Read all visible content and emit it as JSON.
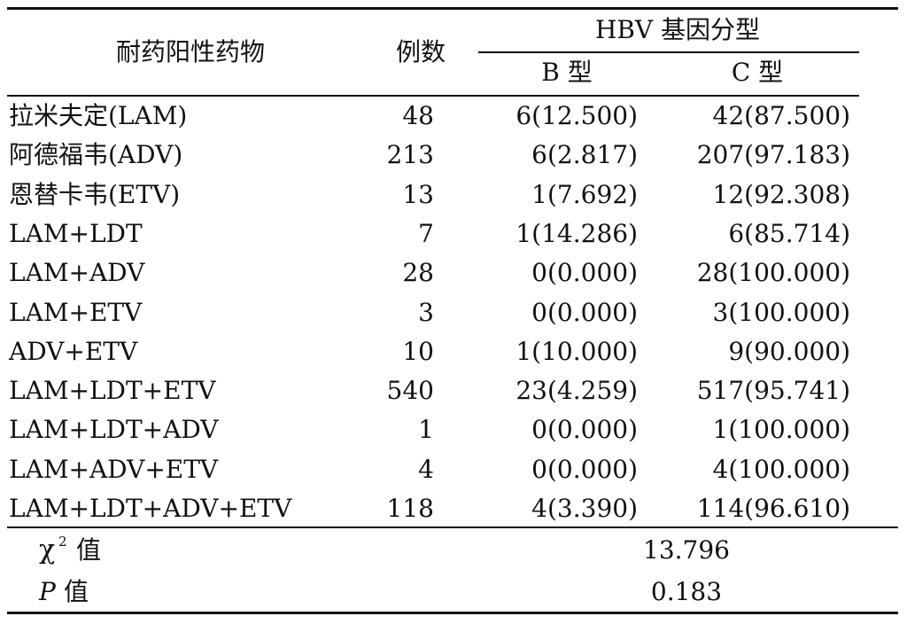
{
  "table": {
    "header": {
      "drug": "耐药阳性药物",
      "count": "例数",
      "genotype_group": "HBV 基因分型",
      "genotype_b": "B 型",
      "genotype_c": "C 型"
    },
    "rows": [
      {
        "drug": "拉米夫定(LAM)",
        "count": "48",
        "b": "6(12.500)",
        "c": "42(87.500)"
      },
      {
        "drug": "阿德福韦(ADV)",
        "count": "213",
        "b": "6(2.817)",
        "c": "207(97.183)"
      },
      {
        "drug": "恩替卡韦(ETV)",
        "count": "13",
        "b": "1(7.692)",
        "c": "12(92.308)"
      },
      {
        "drug": "LAM+LDT",
        "count": "7",
        "b": "1(14.286)",
        "c": "6(85.714)"
      },
      {
        "drug": "LAM+ADV",
        "count": "28",
        "b": "0(0.000)",
        "c": "28(100.000)"
      },
      {
        "drug": "LAM+ETV",
        "count": "3",
        "b": "0(0.000)",
        "c": "3(100.000)"
      },
      {
        "drug": "ADV+ETV",
        "count": "10",
        "b": "1(10.000)",
        "c": "9(90.000)"
      },
      {
        "drug": "LAM+LDT+ETV",
        "count": "540",
        "b": "23(4.259)",
        "c": "517(95.741)"
      },
      {
        "drug": "LAM+LDT+ADV",
        "count": "1",
        "b": "0(0.000)",
        "c": "1(100.000)"
      },
      {
        "drug": "LAM+ADV+ETV",
        "count": "4",
        "b": "0(0.000)",
        "c": "4(100.000)"
      },
      {
        "drug": "LAM+LDT+ADV+ETV",
        "count": "118",
        "b": "4(3.390)",
        "c": "114(96.610)"
      }
    ],
    "stats": {
      "chi_symbol": "χ",
      "chi_superscript": "2",
      "chi_suffix": "值",
      "chi_value": "13.796",
      "p_symbol": "P",
      "p_suffix": "值",
      "p_value": "0.183"
    }
  }
}
